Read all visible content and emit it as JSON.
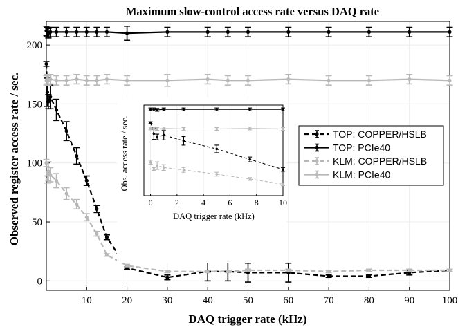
{
  "chart_data": [
    {
      "type": "line",
      "title": "Maximum slow-control access rate versus DAQ rate",
      "xlabel": "DAQ trigger rate (kHz)",
      "ylabel": "Observed register access rate / sec.",
      "xlim": [
        0,
        100
      ],
      "ylim": [
        -8,
        220
      ],
      "xticks": [
        10,
        20,
        30,
        40,
        50,
        60,
        70,
        80,
        90,
        100
      ],
      "yticks": [
        0,
        50,
        100,
        150,
        200
      ],
      "grid": true,
      "legend_position": "right",
      "series": [
        {
          "name": "TOP: COPPER/HSLB",
          "color": "#000000",
          "dashed": true,
          "x": [
            0,
            0.25,
            0.5,
            1,
            2.5,
            5,
            7.5,
            10,
            12.5,
            15,
            20,
            30,
            40,
            45,
            50,
            60,
            70,
            80,
            90,
            100
          ],
          "y": [
            184,
            160,
            152,
            156,
            145,
            127,
            106,
            85,
            61,
            37,
            11,
            3,
            8,
            8,
            7,
            7,
            4,
            4,
            7,
            9
          ],
          "err": [
            2,
            12,
            6,
            10,
            9,
            8,
            7,
            4,
            3,
            2,
            1,
            2,
            8,
            8,
            8,
            8,
            1,
            1,
            2,
            1
          ]
        },
        {
          "name": "TOP: PCIe40",
          "color": "#000000",
          "dashed": false,
          "x": [
            0,
            0.25,
            0.5,
            1,
            2.5,
            5,
            7.5,
            10,
            12.5,
            15,
            20,
            30,
            40,
            45,
            50,
            60,
            70,
            80,
            90,
            100
          ],
          "y": [
            212,
            211,
            210,
            211,
            211,
            211,
            211,
            211,
            211,
            211,
            210,
            211,
            211,
            211,
            211,
            211,
            211,
            211,
            211,
            211
          ],
          "err": [
            4,
            4,
            4,
            4,
            4,
            4,
            4,
            4,
            4,
            4,
            6,
            4,
            4,
            4,
            4,
            4,
            4,
            4,
            4,
            4
          ]
        },
        {
          "name": "KLM: COPPER/HSLB",
          "color": "#b8b8b8",
          "dashed": true,
          "x": [
            0,
            0.25,
            0.5,
            1,
            2.5,
            5,
            7.5,
            10,
            12.5,
            15,
            20,
            30,
            40,
            45,
            50,
            60,
            70,
            80,
            90,
            100
          ],
          "y": [
            100,
            86,
            93,
            90,
            85,
            74,
            65,
            54,
            40,
            22,
            13,
            8,
            8,
            8,
            9,
            9,
            8,
            9,
            9,
            9
          ],
          "err": [
            3,
            3,
            8,
            6,
            6,
            5,
            4,
            3,
            2,
            1,
            1,
            1,
            1,
            1,
            1,
            1,
            1,
            1,
            1,
            1
          ]
        },
        {
          "name": "KLM: PCIe40",
          "color": "#b8b8b8",
          "dashed": false,
          "x": [
            0,
            0.25,
            0.5,
            1,
            2.5,
            5,
            7.5,
            10,
            12.5,
            15,
            20,
            30,
            40,
            45,
            50,
            60,
            70,
            80,
            90,
            100
          ],
          "y": [
            170,
            171,
            170,
            171,
            170,
            170,
            171,
            170,
            170,
            171,
            170,
            170,
            171,
            170,
            170,
            171,
            170,
            170,
            171,
            170
          ],
          "err": [
            4,
            4,
            4,
            4,
            4,
            4,
            4,
            4,
            4,
            4,
            4,
            5,
            4,
            4,
            4,
            4,
            4,
            4,
            4,
            4
          ]
        }
      ]
    },
    {
      "type": "line",
      "xlabel": "DAQ trigger rate (kHz)",
      "ylabel": "Obs. access rate / sec.",
      "xlim": [
        -0.5,
        10
      ],
      "ylim": [
        30,
        220
      ],
      "xticks": [
        0,
        2,
        4,
        6,
        8,
        10
      ],
      "grid": true,
      "series": [
        {
          "name": "TOP: COPPER/HSLB",
          "color": "#000000",
          "dashed": true,
          "x": [
            0,
            0.25,
            0.5,
            1,
            2.5,
            5,
            7.5,
            10
          ],
          "y": [
            183,
            160,
            153,
            157,
            145,
            128,
            106,
            85
          ],
          "err": [
            2,
            12,
            6,
            10,
            9,
            8,
            5,
            4
          ]
        },
        {
          "name": "TOP: PCIe40",
          "color": "#000000",
          "dashed": false,
          "x": [
            0,
            0.25,
            0.5,
            1,
            2.5,
            5,
            7.5,
            10
          ],
          "y": [
            211,
            211,
            210,
            211,
            211,
            211,
            211,
            211
          ],
          "err": [
            3,
            3,
            3,
            3,
            3,
            3,
            3,
            3
          ]
        },
        {
          "name": "KLM: COPPER/HSLB",
          "color": "#b8b8b8",
          "dashed": true,
          "x": [
            0,
            0.25,
            0.5,
            1,
            2.5,
            5,
            7.5,
            10
          ],
          "y": [
            100,
            86,
            93,
            89,
            84,
            75,
            65,
            54
          ],
          "err": [
            4,
            3,
            8,
            6,
            5,
            4,
            3,
            3
          ]
        },
        {
          "name": "KLM: PCIe40",
          "color": "#b8b8b8",
          "dashed": false,
          "x": [
            0,
            0.25,
            0.5,
            1,
            2.5,
            5,
            7.5,
            10
          ],
          "y": [
            171,
            171,
            170,
            171,
            170,
            170,
            171,
            170
          ],
          "err": [
            3,
            3,
            3,
            3,
            3,
            3,
            3,
            3
          ]
        }
      ]
    }
  ]
}
